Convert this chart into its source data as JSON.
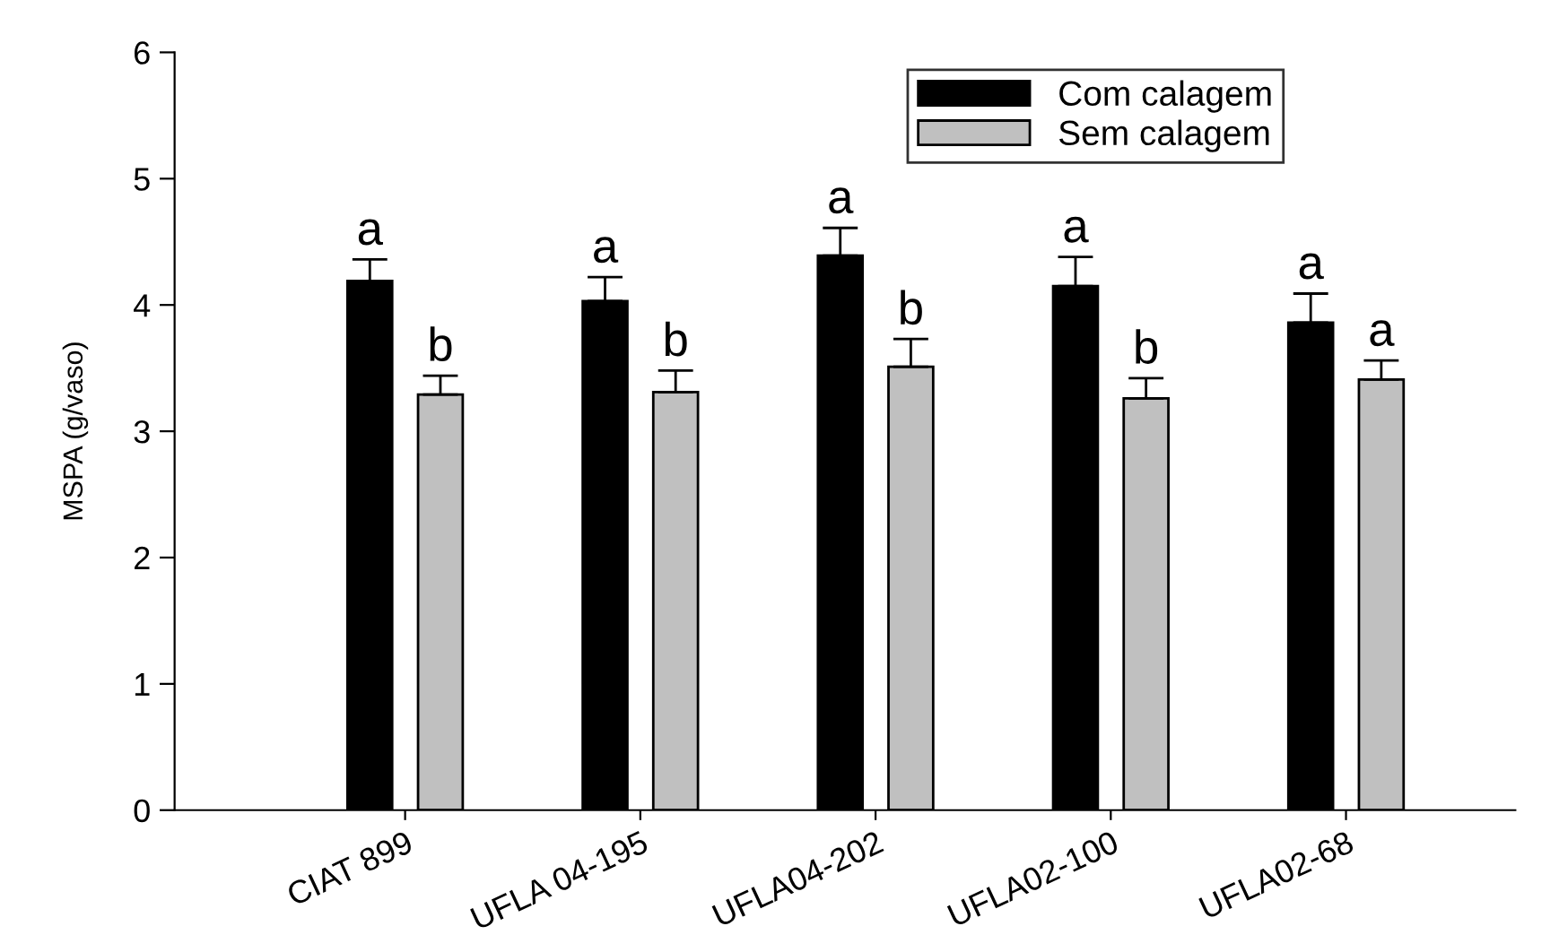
{
  "chart_data": {
    "type": "bar",
    "ylabel": "MSPA (g/vaso)",
    "categories": [
      "CIAT 899",
      "UFLA 04-195",
      "UFLA04-202",
      "UFLA02-100",
      "UFLA02-68"
    ],
    "series": [
      {
        "name": "Com calagem",
        "color": "#000000",
        "values": [
          4.19,
          4.03,
          4.39,
          4.15,
          3.86
        ],
        "errors": [
          0.17,
          0.19,
          0.22,
          0.23,
          0.23
        ]
      },
      {
        "name": "Sem calagem",
        "color": "#c0c0c0",
        "values": [
          3.29,
          3.31,
          3.51,
          3.26,
          3.41
        ],
        "errors": [
          0.15,
          0.17,
          0.22,
          0.16,
          0.15
        ]
      }
    ],
    "annotations": [
      "a",
      "b",
      "a",
      "b",
      "a",
      "b",
      "a",
      "b",
      "a",
      "a"
    ],
    "ylim": [
      0,
      6
    ],
    "yticks": [
      0,
      1,
      2,
      3,
      4,
      5,
      6
    ],
    "grid": false,
    "legend": "top right"
  }
}
